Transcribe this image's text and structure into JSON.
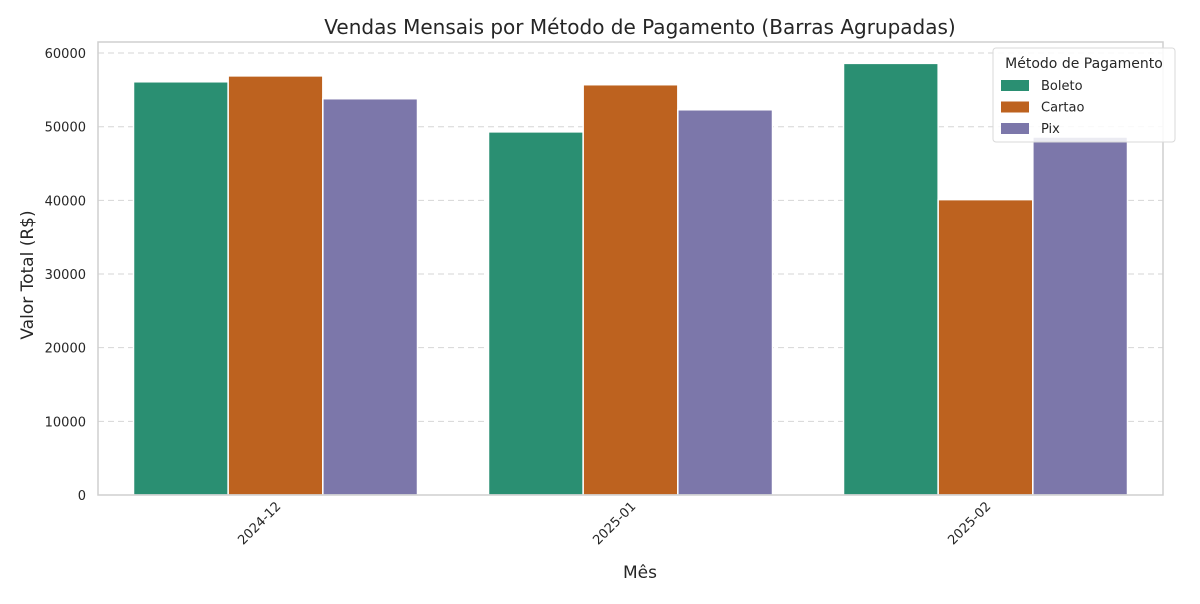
{
  "chart_data": {
    "type": "bar",
    "title": "Vendas Mensais por Método de Pagamento (Barras Agrupadas)",
    "xlabel": "Mês",
    "ylabel": "Valor Total (R$)",
    "categories": [
      "2024-12",
      "2025-01",
      "2025-02"
    ],
    "series": [
      {
        "name": "Boleto",
        "color": "#2a8f72",
        "values": [
          56100,
          49300,
          58600
        ]
      },
      {
        "name": "Cartao",
        "color": "#bd621f",
        "values": [
          56900,
          55700,
          40100
        ]
      },
      {
        "name": "Pix",
        "color": "#7c77aa",
        "values": [
          53800,
          52300,
          48600
        ]
      }
    ],
    "ylim": [
      0,
      61500
    ],
    "yticks": [
      0,
      10000,
      20000,
      30000,
      40000,
      50000,
      60000
    ],
    "grid": "horizontal dashed",
    "legend": {
      "title": "Método de Pagamento",
      "placement": "top-right"
    }
  }
}
